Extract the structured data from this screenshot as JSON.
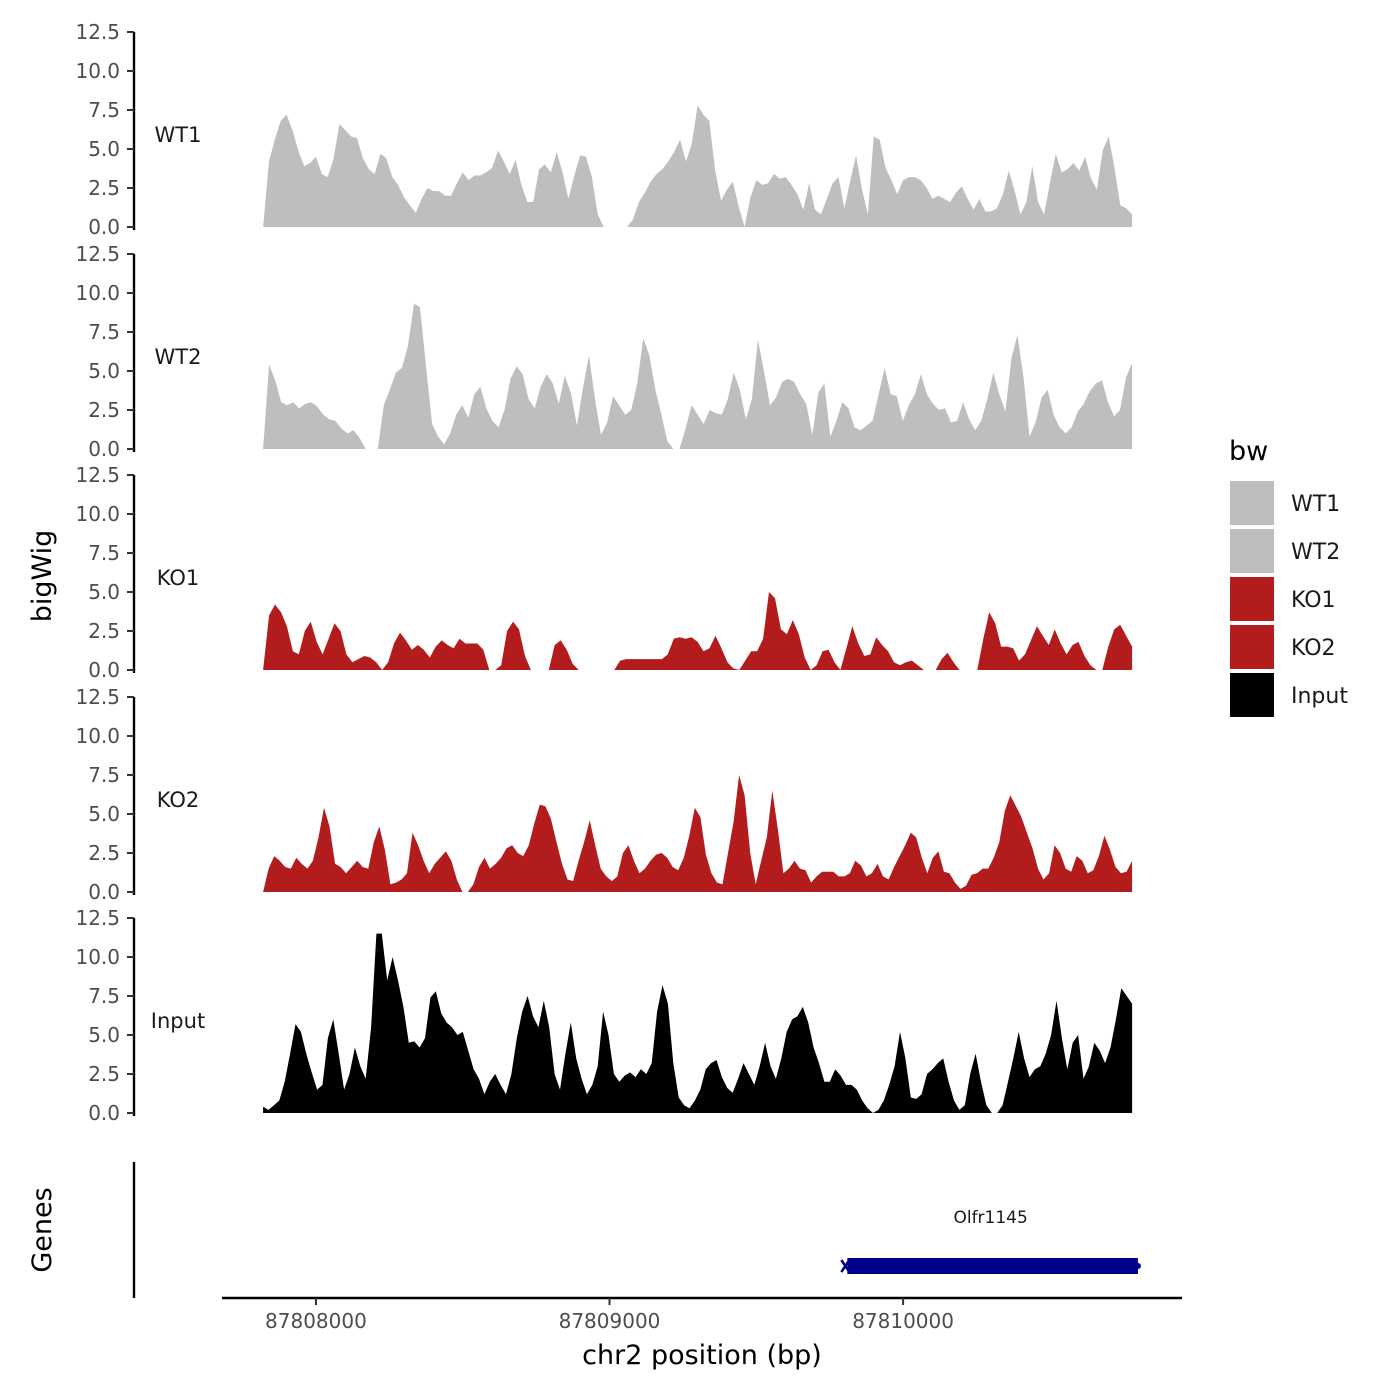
{
  "chart_data": {
    "type": "area",
    "title": "",
    "ylabel": "bigWig",
    "genes_label": "Genes",
    "xlabel": "chr2 position (bp)",
    "xlim": [
      87807680,
      87810950
    ],
    "x_start": 87807820,
    "x_end": 87810780,
    "ylim": [
      0,
      12.5
    ],
    "y_ticks": [
      "0.0",
      "2.5",
      "5.0",
      "7.5",
      "10.0",
      "12.5"
    ],
    "x_ticks": [
      {
        "value": 87808000,
        "label": "87808000"
      },
      {
        "value": 87809000,
        "label": "87809000"
      },
      {
        "value": 87810000,
        "label": "87810000"
      }
    ],
    "legend": {
      "title": "bw",
      "position": "right",
      "entries": [
        {
          "label": "WT1",
          "color": "#bebebe"
        },
        {
          "label": "WT2",
          "color": "#bebebe"
        },
        {
          "label": "KO1",
          "color": "#b21c1c"
        },
        {
          "label": "KO2",
          "color": "#b21c1c"
        },
        {
          "label": "Input",
          "color": "#000000"
        }
      ]
    },
    "series": [
      {
        "name": "WT1",
        "color": "#bebebe",
        "values": [
          0.0,
          4.2,
          5.6,
          6.8,
          7.2,
          6.2,
          4.9,
          3.9,
          4.1,
          4.5,
          3.4,
          3.2,
          4.4,
          6.6,
          6.2,
          5.8,
          5.7,
          4.4,
          3.7,
          3.4,
          4.7,
          4.4,
          3.2,
          2.7,
          1.9,
          1.4,
          0.9,
          1.8,
          2.5,
          2.3,
          2.3,
          2.0,
          2.0,
          2.8,
          3.5,
          3.0,
          3.3,
          3.3,
          3.5,
          3.8,
          4.9,
          4.2,
          3.4,
          4.3,
          2.7,
          1.6,
          1.6,
          3.7,
          4.0,
          3.5,
          4.8,
          3.5,
          1.8,
          3.3,
          4.6,
          4.5,
          3.2,
          0.8,
          0.0,
          0.0,
          0.0,
          0.0,
          0.0,
          0.5,
          1.6,
          2.2,
          2.9,
          3.4,
          3.7,
          4.2,
          4.8,
          5.6,
          4.2,
          5.3,
          7.8,
          7.2,
          6.8,
          3.6,
          1.7,
          2.4,
          2.9,
          1.3,
          0.0,
          1.9,
          3.0,
          2.7,
          2.8,
          3.4,
          3.1,
          3.2,
          2.7,
          2.1,
          1.1,
          2.8,
          1.1,
          0.8,
          1.8,
          2.8,
          3.2,
          1.2,
          3.0,
          4.6,
          2.4,
          0.8,
          5.8,
          5.6,
          3.8,
          3.0,
          2.1,
          3.0,
          3.2,
          3.2,
          3.0,
          2.5,
          1.8,
          2.0,
          1.8,
          1.6,
          2.2,
          2.6,
          1.8,
          1.1,
          1.8,
          1.0,
          1.0,
          1.2,
          2.1,
          3.6,
          2.3,
          0.8,
          1.6,
          3.9,
          1.6,
          0.8,
          2.8,
          4.7,
          3.5,
          3.7,
          4.1,
          3.6,
          4.5,
          3.1,
          2.4,
          4.9,
          5.8,
          3.8,
          1.4,
          1.2,
          0.8
        ]
      },
      {
        "name": "WT2",
        "color": "#bebebe",
        "values": [
          0.0,
          5.4,
          4.4,
          3.0,
          2.8,
          3.0,
          2.6,
          2.9,
          3.0,
          2.7,
          2.2,
          1.9,
          1.8,
          1.3,
          1.0,
          1.2,
          0.7,
          0.0,
          0.0,
          0.0,
          2.8,
          3.8,
          4.9,
          5.2,
          6.6,
          9.3,
          9.1,
          5.3,
          1.6,
          0.8,
          0.3,
          1.0,
          2.2,
          2.8,
          2.0,
          3.5,
          4.0,
          2.6,
          1.8,
          1.4,
          2.5,
          4.5,
          5.3,
          4.8,
          3.2,
          2.6,
          4.0,
          4.8,
          4.2,
          2.9,
          4.7,
          3.6,
          1.5,
          3.9,
          6.0,
          3.2,
          0.9,
          1.7,
          3.4,
          2.8,
          2.2,
          2.5,
          4.2,
          7.1,
          6.0,
          3.8,
          2.2,
          0.5,
          0.0,
          0.0,
          1.3,
          2.8,
          2.2,
          1.6,
          2.5,
          2.3,
          2.2,
          3.2,
          4.9,
          3.8,
          1.9,
          3.2,
          7.0,
          5.0,
          2.8,
          3.3,
          4.3,
          4.5,
          4.3,
          3.5,
          2.9,
          0.9,
          3.6,
          4.2,
          0.8,
          1.8,
          3.0,
          2.6,
          1.4,
          1.2,
          1.5,
          1.8,
          3.5,
          5.2,
          3.5,
          3.4,
          1.8,
          2.8,
          3.5,
          4.8,
          3.5,
          2.9,
          2.5,
          2.6,
          1.7,
          1.8,
          3.0,
          1.9,
          1.2,
          1.8,
          3.2,
          4.9,
          3.5,
          2.4,
          5.8,
          7.3,
          4.6,
          0.8,
          1.7,
          3.3,
          3.8,
          2.2,
          1.4,
          1.0,
          1.4,
          2.4,
          2.9,
          3.7,
          4.2,
          4.4,
          3.0,
          2.1,
          2.5,
          4.6,
          5.5
        ]
      },
      {
        "name": "KO1",
        "color": "#b21c1c",
        "values": [
          0.0,
          3.5,
          4.2,
          3.7,
          2.8,
          1.2,
          1.0,
          2.5,
          3.1,
          1.8,
          1.0,
          2.0,
          3.0,
          2.5,
          1.0,
          0.5,
          0.7,
          0.9,
          0.8,
          0.5,
          0.0,
          0.5,
          1.7,
          2.4,
          1.9,
          1.3,
          1.6,
          1.3,
          0.8,
          1.5,
          1.9,
          1.6,
          1.4,
          2.0,
          1.7,
          1.7,
          1.7,
          1.3,
          0.0,
          0.0,
          0.3,
          2.5,
          3.1,
          2.6,
          0.9,
          0.0,
          0.0,
          0.0,
          0.0,
          1.6,
          1.9,
          1.3,
          0.4,
          0.0,
          0.0,
          0.0,
          0.0,
          0.0,
          0.0,
          0.0,
          0.6,
          0.7,
          0.7,
          0.7,
          0.7,
          0.7,
          0.7,
          0.7,
          1.0,
          2.0,
          2.1,
          2.0,
          2.1,
          1.8,
          1.2,
          1.4,
          2.2,
          1.4,
          0.5,
          0.1,
          0.0,
          0.6,
          1.2,
          1.2,
          2.0,
          5.0,
          4.6,
          2.6,
          2.3,
          3.2,
          2.3,
          0.8,
          0.0,
          0.3,
          1.2,
          1.3,
          0.5,
          0.0,
          1.4,
          2.8,
          1.7,
          0.9,
          1.0,
          2.1,
          1.6,
          1.2,
          0.5,
          0.3,
          0.5,
          0.6,
          0.3,
          0.0,
          0.0,
          0.0,
          0.7,
          1.1,
          0.5,
          0.0,
          0.0,
          0.0,
          0.0,
          2.0,
          3.7,
          3.0,
          1.5,
          1.5,
          1.4,
          0.6,
          1.0,
          1.9,
          2.8,
          2.2,
          1.6,
          2.6,
          1.7,
          1.0,
          1.6,
          1.8,
          0.9,
          0.3,
          0.0,
          0.0,
          1.5,
          2.6,
          2.9,
          2.2,
          1.5
        ]
      },
      {
        "name": "KO2",
        "color": "#b21c1c",
        "values": [
          0.0,
          1.5,
          2.3,
          2.0,
          1.6,
          1.5,
          2.2,
          1.8,
          1.5,
          2.0,
          3.5,
          5.4,
          4.2,
          1.8,
          1.6,
          1.2,
          1.6,
          2.0,
          1.6,
          1.5,
          3.2,
          4.2,
          2.7,
          0.5,
          0.6,
          0.8,
          1.2,
          3.8,
          3.0,
          2.0,
          1.2,
          1.8,
          2.2,
          2.6,
          2.0,
          0.8,
          0.0,
          0.0,
          0.5,
          1.6,
          2.2,
          1.5,
          1.8,
          2.2,
          2.8,
          3.0,
          2.5,
          2.3,
          3.0,
          4.4,
          5.6,
          5.5,
          4.7,
          3.2,
          1.8,
          0.8,
          0.7,
          2.0,
          3.2,
          4.6,
          3.0,
          1.5,
          1.0,
          0.7,
          1.0,
          2.5,
          3.0,
          2.0,
          1.2,
          1.5,
          2.0,
          2.4,
          2.5,
          2.2,
          1.6,
          1.4,
          2.2,
          3.6,
          5.4,
          4.8,
          2.4,
          1.2,
          0.6,
          0.5,
          2.5,
          4.5,
          7.5,
          6.2,
          2.5,
          0.5,
          2.0,
          3.5,
          6.5,
          4.0,
          1.2,
          1.5,
          2.0,
          1.5,
          1.4,
          0.6,
          1.0,
          1.3,
          1.3,
          1.3,
          1.0,
          1.0,
          1.2,
          2.0,
          1.7,
          1.0,
          1.2,
          1.8,
          1.0,
          0.8,
          1.6,
          2.3,
          3.0,
          3.8,
          3.5,
          2.2,
          1.2,
          2.2,
          2.6,
          1.3,
          1.2,
          0.6,
          0.2,
          0.4,
          1.1,
          1.2,
          1.5,
          1.5,
          2.2,
          3.2,
          5.2,
          6.2,
          5.5,
          4.8,
          3.8,
          2.8,
          1.5,
          0.8,
          1.2,
          3.0,
          2.5,
          1.5,
          1.3,
          2.3,
          2.0,
          1.2,
          1.4,
          2.3,
          3.6,
          2.7,
          1.6,
          1.2,
          1.3,
          2.0
        ]
      },
      {
        "name": "Input",
        "color": "#000000",
        "values": [
          0.4,
          0.2,
          0.5,
          0.8,
          2.0,
          3.8,
          5.7,
          5.2,
          3.8,
          2.6,
          1.5,
          1.8,
          4.8,
          6.0,
          3.8,
          1.5,
          2.5,
          4.2,
          3.0,
          2.2,
          5.5,
          11.5,
          11.5,
          8.5,
          10.0,
          8.5,
          6.8,
          4.5,
          4.6,
          4.2,
          4.8,
          7.4,
          7.8,
          6.4,
          5.8,
          5.5,
          5.0,
          5.2,
          4.0,
          2.8,
          2.2,
          1.2,
          2.0,
          2.5,
          1.8,
          1.2,
          2.5,
          4.8,
          6.5,
          7.5,
          6.2,
          5.5,
          7.2,
          5.5,
          2.5,
          1.5,
          3.8,
          5.8,
          3.5,
          2.2,
          1.2,
          1.8,
          3.0,
          6.5,
          5.0,
          2.5,
          2.0,
          2.4,
          2.6,
          2.3,
          2.8,
          2.5,
          3.2,
          6.5,
          8.2,
          7.0,
          3.2,
          1.0,
          0.5,
          0.3,
          0.8,
          1.5,
          2.8,
          3.2,
          3.4,
          2.3,
          1.6,
          1.3,
          2.2,
          3.2,
          2.5,
          1.8,
          3.0,
          4.5,
          3.0,
          2.2,
          3.5,
          5.2,
          6.0,
          6.2,
          6.8,
          5.8,
          4.2,
          3.2,
          2.0,
          2.0,
          2.8,
          2.4,
          1.8,
          1.8,
          1.5,
          0.8,
          0.3,
          0.0,
          0.2,
          0.8,
          1.8,
          3.0,
          5.2,
          3.5,
          1.0,
          0.9,
          1.2,
          2.5,
          2.8,
          3.2,
          3.5,
          2.0,
          0.8,
          0.2,
          0.5,
          2.5,
          3.8,
          2.0,
          0.5,
          0.0,
          0.0,
          0.5,
          2.0,
          3.5,
          5.2,
          3.5,
          2.3,
          2.8,
          3.0,
          3.8,
          5.0,
          7.2,
          4.8,
          2.8,
          4.5,
          5.0,
          2.2,
          3.0,
          4.5,
          4.0,
          3.2,
          4.2,
          6.0,
          8.0,
          7.5,
          7.0
        ]
      }
    ],
    "genes": [
      {
        "name": "Olfr1145",
        "start": 87809810,
        "end": 87810800,
        "strand": "-",
        "color": "#00008b"
      }
    ]
  }
}
